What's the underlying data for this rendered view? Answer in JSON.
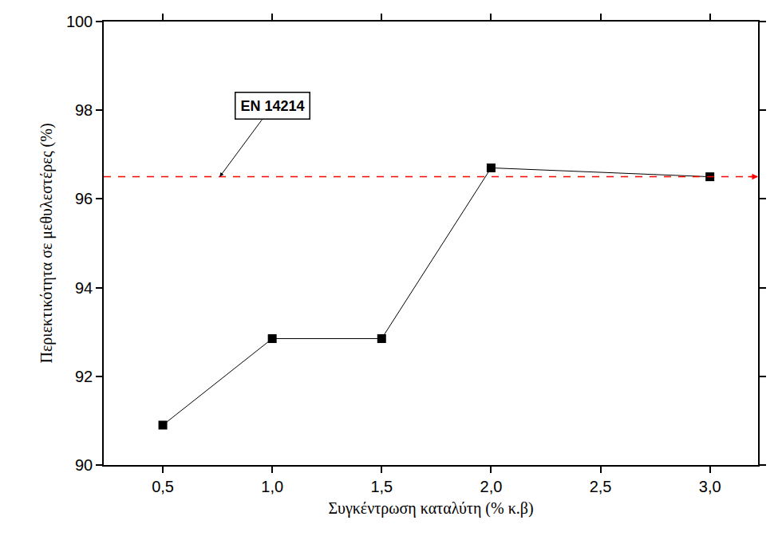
{
  "chart_data": {
    "type": "line",
    "x_label": "Συγκέντρωση καταλύτη (% κ.β)",
    "y_label": "Περιεκτικότητα σε μεθυλεστέρες (%)",
    "x": [
      0.5,
      1.0,
      1.5,
      2.0,
      3.0
    ],
    "values": [
      90.9,
      92.85,
      92.85,
      96.7,
      96.5
    ],
    "color": "#000000",
    "marker": "square",
    "line_style": "solid",
    "xlim": [
      0.23,
      3.22
    ],
    "xticks": [
      {
        "value": 0.5,
        "label": "0,5"
      },
      {
        "value": 1.0,
        "label": "1,0"
      },
      {
        "value": 1.5,
        "label": "1,5"
      },
      {
        "value": 2.0,
        "label": "2,0"
      },
      {
        "value": 2.5,
        "label": "2,5"
      },
      {
        "value": 3.0,
        "label": "3,0"
      }
    ],
    "ylim": [
      90,
      100
    ],
    "yticks": [
      90,
      92,
      94,
      96,
      98,
      100
    ],
    "grid": false,
    "reference_line": {
      "y": 96.5,
      "color": "#ff0000",
      "line_style": "dash"
    },
    "annotations": [
      {
        "text": "EN 14214",
        "x": 1.0,
        "y": 98.1,
        "arrow_x": 0.76,
        "arrow_y": 96.5
      }
    ]
  }
}
